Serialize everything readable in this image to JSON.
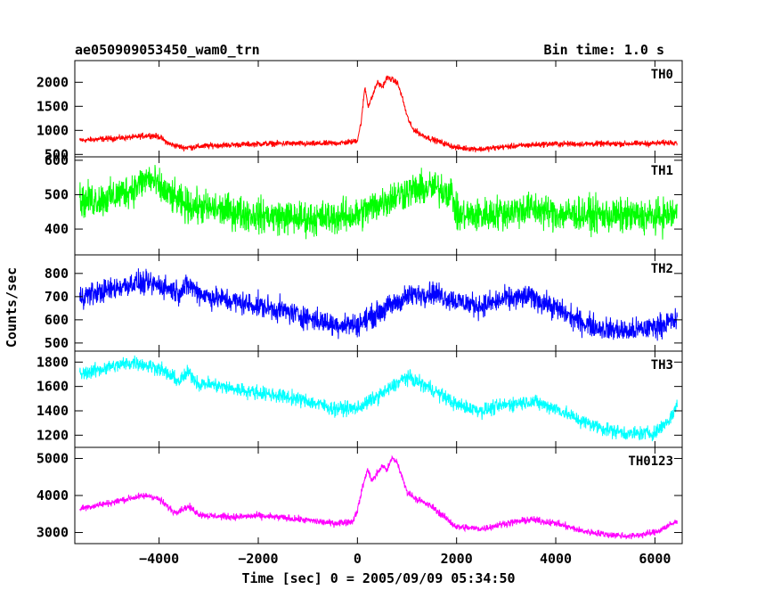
{
  "header": {
    "title": "ae050909053450_wam0_trn",
    "bin_time": "Bin time: 1.0 s"
  },
  "chart_data": {
    "type": "line",
    "title": "ae050909053450_wam0_trn",
    "xlabel": "Time [sec] 0 = 2005/09/09 05:34:50",
    "ylabel": "Counts/sec",
    "xlim": [
      -5700,
      6550
    ],
    "x_ticks": [
      -4000,
      -2000,
      0,
      2000,
      4000,
      6000
    ],
    "x_tick_labels": [
      "−4000",
      "−2000",
      "0",
      "2000",
      "4000",
      "6000"
    ],
    "panels": [
      {
        "name": "TH0",
        "color": "#ff0000",
        "ylim": [
          450,
          2450
        ],
        "y_ticks": [
          500,
          1000,
          1500,
          2000
        ],
        "noise": 45,
        "x": [
          -5600,
          -5000,
          -4500,
          -4200,
          -4000,
          -3800,
          -3500,
          -3000,
          -2500,
          -2000,
          -1500,
          -1000,
          -500,
          -100,
          0,
          80,
          150,
          220,
          300,
          400,
          500,
          600,
          700,
          800,
          900,
          1000,
          1100,
          1300,
          1600,
          2000,
          2500,
          3000,
          3500,
          4000,
          5000,
          6000,
          6450
        ],
        "y": [
          790,
          830,
          860,
          900,
          870,
          720,
          640,
          680,
          700,
          720,
          730,
          720,
          730,
          760,
          800,
          1200,
          1900,
          1500,
          1700,
          2000,
          1900,
          2100,
          2050,
          2000,
          1700,
          1300,
          1050,
          900,
          780,
          640,
          610,
          660,
          700,
          720,
          720,
          730,
          760
        ]
      },
      {
        "name": "TH1",
        "color": "#00ff00",
        "ylim": [
          325,
          610
        ],
        "y_ticks": [
          400,
          500,
          600
        ],
        "noise": 38,
        "x": [
          -5600,
          -5000,
          -4500,
          -4200,
          -4000,
          -3500,
          -3000,
          -2000,
          -1000,
          0,
          500,
          1000,
          1500,
          1900,
          2000,
          2500,
          3000,
          3500,
          4000,
          5000,
          6000,
          6450
        ],
        "y": [
          480,
          490,
          520,
          550,
          520,
          470,
          460,
          440,
          430,
          440,
          480,
          510,
          520,
          510,
          440,
          440,
          450,
          460,
          445,
          440,
          435,
          445
        ]
      },
      {
        "name": "TH2",
        "color": "#0000ff",
        "ylim": [
          465,
          880
        ],
        "y_ticks": [
          500,
          600,
          700,
          800
        ],
        "noise": 38,
        "x": [
          -5600,
          -5000,
          -4500,
          -4000,
          -3600,
          -3400,
          -3200,
          -3000,
          -2500,
          -2000,
          -1500,
          -1000,
          -500,
          0,
          500,
          1000,
          1500,
          2000,
          2500,
          3000,
          3500,
          4000,
          4500,
          5000,
          5500,
          6000,
          6450
        ],
        "y": [
          700,
          730,
          760,
          750,
          720,
          750,
          720,
          700,
          680,
          660,
          640,
          610,
          580,
          580,
          640,
          700,
          720,
          680,
          660,
          690,
          700,
          650,
          590,
          560,
          550,
          570,
          600
        ]
      },
      {
        "name": "TH3",
        "color": "#00ffff",
        "ylim": [
          1100,
          1890
        ],
        "y_ticks": [
          1200,
          1400,
          1600,
          1800
        ],
        "noise": 45,
        "x": [
          -5600,
          -5000,
          -4500,
          -4000,
          -3600,
          -3400,
          -3200,
          -3000,
          -2500,
          -2000,
          -1500,
          -1000,
          -500,
          0,
          500,
          1000,
          1500,
          2000,
          2500,
          3000,
          3500,
          4000,
          4500,
          5000,
          5500,
          6000,
          6300,
          6450
        ],
        "y": [
          1700,
          1760,
          1800,
          1750,
          1640,
          1720,
          1620,
          1620,
          1580,
          1550,
          1520,
          1480,
          1420,
          1420,
          1540,
          1680,
          1580,
          1450,
          1400,
          1450,
          1480,
          1420,
          1320,
          1250,
          1210,
          1220,
          1330,
          1450
        ]
      },
      {
        "name": "TH0123",
        "color": "#ff00ff",
        "ylim": [
          2700,
          5300
        ],
        "y_ticks": [
          3000,
          4000,
          5000
        ],
        "noise": 70,
        "x": [
          -5600,
          -5000,
          -4500,
          -4200,
          -4000,
          -3700,
          -3400,
          -3200,
          -3000,
          -2500,
          -2000,
          -1500,
          -1000,
          -500,
          -100,
          0,
          100,
          200,
          300,
          400,
          500,
          600,
          700,
          800,
          900,
          1000,
          1200,
          1500,
          2000,
          2500,
          3000,
          3500,
          4000,
          4500,
          5000,
          5500,
          6000,
          6450
        ],
        "y": [
          3650,
          3800,
          3950,
          4000,
          3900,
          3550,
          3700,
          3500,
          3450,
          3420,
          3450,
          3400,
          3330,
          3250,
          3300,
          3600,
          4200,
          4700,
          4400,
          4600,
          4800,
          4700,
          5000,
          4900,
          4500,
          4100,
          3900,
          3700,
          3150,
          3100,
          3250,
          3350,
          3250,
          3050,
          2950,
          2900,
          3000,
          3300
        ]
      }
    ]
  }
}
